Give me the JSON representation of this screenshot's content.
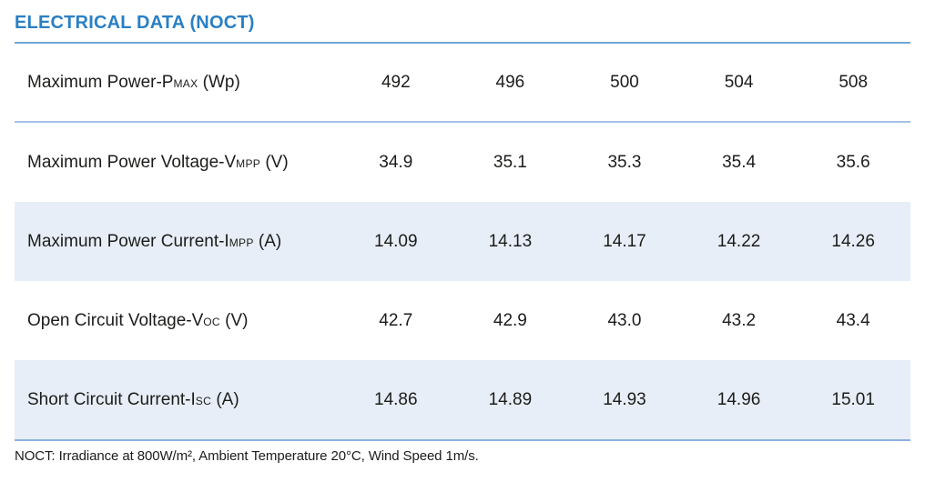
{
  "title": "ELECTRICAL DATA (NOCT)",
  "footnote": "NOCT: Irradiance at 800W/m², Ambient Temperature 20°C, Wind Speed 1m/s.",
  "colors": {
    "accent_blue": "#2a7fc3",
    "title_rule": "#6ea7d8",
    "row_separator": "#a3c0e6",
    "bottom_rule": "#8ab1e1",
    "row_highlight_bg": "#e7eef7",
    "text": "#1c1c1a"
  },
  "table": {
    "rows": [
      {
        "label_prefix": "Maximum Power-P",
        "label_subscript": "MAX",
        "label_suffix": " (Wp)",
        "values": [
          "492",
          "496",
          "500",
          "504",
          "508"
        ],
        "highlighted": false,
        "separator_below": true
      },
      {
        "label_prefix": "Maximum Power Voltage-V",
        "label_subscript": "MPP",
        "label_suffix": " (V)",
        "values": [
          "34.9",
          "35.1",
          "35.3",
          "35.4",
          "35.6"
        ],
        "highlighted": false,
        "separator_below": false
      },
      {
        "label_prefix": "Maximum Power Current-I",
        "label_subscript": "MPP",
        "label_suffix": " (A)",
        "values": [
          "14.09",
          "14.13",
          "14.17",
          "14.22",
          "14.26"
        ],
        "highlighted": true,
        "separator_below": false
      },
      {
        "label_prefix": "Open Circuit Voltage-V",
        "label_subscript": "OC",
        "label_suffix": " (V)",
        "values": [
          "42.7",
          "42.9",
          "43.0",
          "43.2",
          "43.4"
        ],
        "highlighted": false,
        "separator_below": false
      },
      {
        "label_prefix": "Short Circuit Current-I",
        "label_subscript": "SC",
        "label_suffix": " (A)",
        "values": [
          "14.86",
          "14.89",
          "14.93",
          "14.96",
          "15.01"
        ],
        "highlighted": true,
        "separator_below": false
      }
    ]
  }
}
